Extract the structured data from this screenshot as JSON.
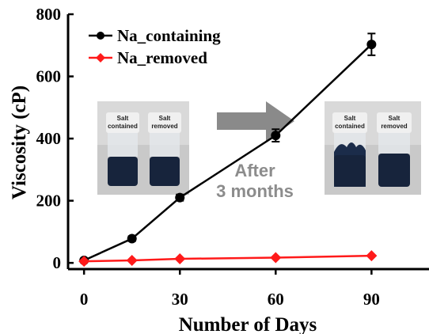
{
  "chart_data": {
    "type": "line",
    "xlabel": "Number of Days",
    "ylabel": "Viscosity (cP)",
    "xlim": [
      -5,
      108
    ],
    "ylim": [
      -20,
      800
    ],
    "xticks": [
      0,
      30,
      60,
      90
    ],
    "yticks": [
      0,
      200,
      400,
      600,
      800
    ],
    "xtick_labels": [
      "0",
      "30",
      "60",
      "90"
    ],
    "ytick_labels": [
      "0",
      "200",
      "400",
      "600",
      "800"
    ],
    "legend_position": "top-left",
    "grid": false,
    "series": [
      {
        "name": "Na_containing",
        "color": "#000000",
        "marker": "circle",
        "x": [
          0,
          15,
          30,
          60,
          90
        ],
        "y": [
          8,
          78,
          210,
          410,
          703
        ],
        "error": [
          0,
          8,
          10,
          20,
          35
        ]
      },
      {
        "name": "Na_removed",
        "color": "#ff1a1a",
        "marker": "diamond",
        "x": [
          0,
          15,
          30,
          60,
          90
        ],
        "y": [
          5,
          8,
          13,
          17,
          23
        ],
        "error": [
          0,
          0,
          0,
          0,
          0
        ]
      }
    ],
    "annotations": {
      "text_line1": "After",
      "text_line2": "3 months",
      "photo_before": {
        "label_left": [
          "Salt",
          "contained"
        ],
        "label_right": [
          "Salt",
          "removed"
        ]
      },
      "photo_after": {
        "label_left": [
          "Salt",
          "contained"
        ],
        "label_right": [
          "Salt",
          "removed"
        ]
      }
    }
  }
}
